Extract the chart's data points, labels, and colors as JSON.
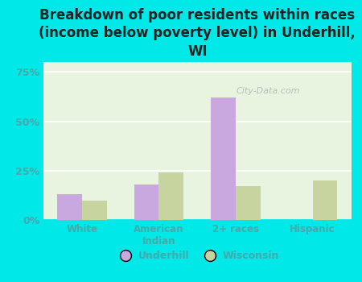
{
  "title": "Breakdown of poor residents within races\n(income below poverty level) in Underhill,\nWI",
  "categories": [
    "White",
    "American\nIndian",
    "2+ races",
    "Hispanic"
  ],
  "underhill_values": [
    13,
    18,
    62,
    0
  ],
  "wisconsin_values": [
    10,
    24,
    17,
    20
  ],
  "bar_color_underhill": "#c9a8e0",
  "bar_color_wisconsin": "#c8d4a0",
  "background_color": "#00e8e8",
  "plot_bg_color": "#e8f4e0",
  "ylim": [
    0,
    80
  ],
  "yticks": [
    0,
    25,
    50,
    75
  ],
  "ytick_labels": [
    "0%",
    "25%",
    "50%",
    "75%"
  ],
  "legend_underhill": "Underhill",
  "legend_wisconsin": "Wisconsin",
  "title_fontsize": 12,
  "tick_color": "#44aaaa",
  "label_color": "#44aaaa",
  "watermark": "City-Data.com",
  "grid_color": "#ffffff",
  "bar_width": 0.32
}
